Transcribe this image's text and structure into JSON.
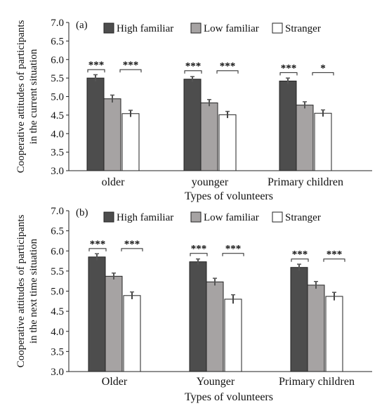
{
  "charts": [
    {
      "panel_label": "(a)",
      "ylabel_lines": [
        "Cooperative attitudes of participants",
        "in the current situation"
      ],
      "xlabel": "Types of volunteers",
      "chart_data": {
        "type": "bar",
        "categories": [
          "older",
          "younger",
          "Primary children"
        ],
        "series": [
          {
            "name": "High familiar",
            "values": [
              5.5,
              5.47,
              5.42
            ],
            "errors": [
              0.09,
              0.07,
              0.08
            ],
            "color": "#4d4d4d"
          },
          {
            "name": "Low familiar",
            "values": [
              4.94,
              4.83,
              4.77
            ],
            "errors": [
              0.1,
              0.09,
              0.09
            ],
            "color": "#a6a3a3"
          },
          {
            "name": "Stranger",
            "values": [
              4.54,
              4.51,
              4.55
            ],
            "errors": [
              0.09,
              0.09,
              0.09
            ],
            "color": "#ffffff"
          }
        ],
        "ylim": [
          3.0,
          7.0
        ],
        "yticks": [
          "3.0",
          "3.5",
          "4.0",
          "4.5",
          "5.0",
          "5.5",
          "6.0",
          "6.5",
          "7.0"
        ],
        "legend_position": "top",
        "significance": [
          {
            "category": 0,
            "from": 0,
            "to": 1,
            "label": "***"
          },
          {
            "category": 0,
            "from": 1,
            "to": 2,
            "label": "***"
          },
          {
            "category": 1,
            "from": 0,
            "to": 1,
            "label": "***"
          },
          {
            "category": 1,
            "from": 1,
            "to": 2,
            "label": "***"
          },
          {
            "category": 2,
            "from": 0,
            "to": 1,
            "label": "***"
          },
          {
            "category": 2,
            "from": 1,
            "to": 2,
            "label": "*"
          }
        ]
      }
    },
    {
      "panel_label": "(b)",
      "ylabel_lines": [
        "Cooperative attitudes of participants",
        "in the next time situation"
      ],
      "xlabel": "Types of volunteers",
      "chart_data": {
        "type": "bar",
        "categories": [
          "Older",
          "Younger",
          "Primary children"
        ],
        "series": [
          {
            "name": "High familiar",
            "values": [
              5.85,
              5.73,
              5.59
            ],
            "errors": [
              0.08,
              0.07,
              0.08
            ],
            "color": "#4d4d4d"
          },
          {
            "name": "Low familiar",
            "values": [
              5.37,
              5.23,
              5.15
            ],
            "errors": [
              0.08,
              0.09,
              0.09
            ],
            "color": "#a6a3a3"
          },
          {
            "name": "Stranger",
            "values": [
              4.89,
              4.8,
              4.87
            ],
            "errors": [
              0.09,
              0.11,
              0.1
            ],
            "color": "#ffffff"
          }
        ],
        "ylim": [
          3.0,
          7.0
        ],
        "yticks": [
          "3.0",
          "3.5",
          "4.0",
          "4.5",
          "5.0",
          "5.5",
          "6.0",
          "6.5",
          "7.0"
        ],
        "legend_position": "top",
        "significance": [
          {
            "category": 0,
            "from": 0,
            "to": 1,
            "label": "***"
          },
          {
            "category": 0,
            "from": 1,
            "to": 2,
            "label": "***"
          },
          {
            "category": 1,
            "from": 0,
            "to": 1,
            "label": "***"
          },
          {
            "category": 1,
            "from": 1,
            "to": 2,
            "label": "***"
          },
          {
            "category": 2,
            "from": 0,
            "to": 1,
            "label": "***"
          },
          {
            "category": 2,
            "from": 1,
            "to": 2,
            "label": "***"
          }
        ]
      }
    }
  ]
}
